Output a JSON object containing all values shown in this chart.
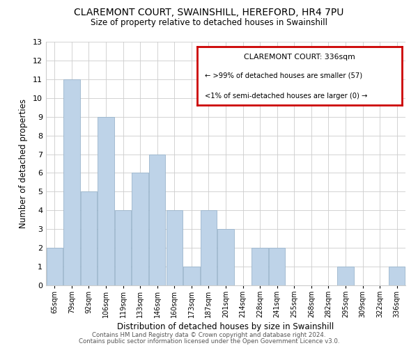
{
  "title": "CLAREMONT COURT, SWAINSHILL, HEREFORD, HR4 7PU",
  "subtitle": "Size of property relative to detached houses in Swainshill",
  "xlabel": "Distribution of detached houses by size in Swainshill",
  "ylabel": "Number of detached properties",
  "bins": [
    "65sqm",
    "79sqm",
    "92sqm",
    "106sqm",
    "119sqm",
    "133sqm",
    "146sqm",
    "160sqm",
    "173sqm",
    "187sqm",
    "201sqm",
    "214sqm",
    "228sqm",
    "241sqm",
    "255sqm",
    "268sqm",
    "282sqm",
    "295sqm",
    "309sqm",
    "322sqm",
    "336sqm"
  ],
  "counts": [
    2,
    11,
    5,
    9,
    4,
    6,
    7,
    4,
    1,
    4,
    3,
    0,
    2,
    2,
    0,
    0,
    0,
    1,
    0,
    0,
    1
  ],
  "bar_color": "#bed3e8",
  "bar_edge_color": "#9ab5cc",
  "legend_title": "CLAREMONT COURT: 336sqm",
  "legend_line1": "← >99% of detached houses are smaller (57)",
  "legend_line2": "<1% of semi-detached houses are larger (0) →",
  "legend_box_color": "#ffffff",
  "legend_box_edge_color": "#cc0000",
  "ylim": [
    0,
    13
  ],
  "yticks": [
    0,
    1,
    2,
    3,
    4,
    5,
    6,
    7,
    8,
    9,
    10,
    11,
    12,
    13
  ],
  "footer1": "Contains HM Land Registry data © Crown copyright and database right 2024.",
  "footer2": "Contains public sector information licensed under the Open Government Licence v3.0.",
  "background_color": "#ffffff",
  "grid_color": "#cccccc"
}
